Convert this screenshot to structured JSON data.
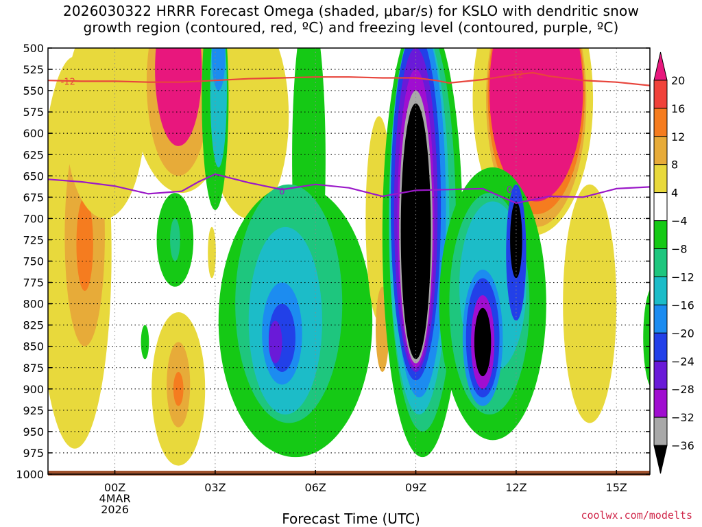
{
  "title": {
    "line1": "2026030322 HRRR Forecast Omega (shaded, μbar/s) for KSLO with dendritic snow",
    "line2": "growth region (contoured, red, ºC) and freezing level (contoured, purple, ºC)"
  },
  "credit": "coolwx.com/modelts",
  "chart_data": {
    "type": "heatmap",
    "xlabel": "Forecast Time (UTC)",
    "x_domain_hours": [
      -2,
      16
    ],
    "x_ticks": [
      {
        "hour": 0,
        "lines": [
          "00Z",
          "4MAR",
          "2026"
        ]
      },
      {
        "hour": 3,
        "lines": [
          "03Z"
        ]
      },
      {
        "hour": 6,
        "lines": [
          "06Z"
        ]
      },
      {
        "hour": 9,
        "lines": [
          "09Z"
        ]
      },
      {
        "hour": 12,
        "lines": [
          "12Z"
        ]
      },
      {
        "hour": 15,
        "lines": [
          "15Z"
        ]
      }
    ],
    "y_scale": "pressure-linear-inverted",
    "ylim": [
      500,
      1000
    ],
    "y_ticks": [
      500,
      525,
      550,
      575,
      600,
      625,
      650,
      675,
      700,
      725,
      750,
      775,
      800,
      825,
      850,
      875,
      900,
      925,
      950,
      975,
      1000
    ],
    "grid": true,
    "colorbar": {
      "labels": [
        "20",
        "16",
        "12",
        "8",
        "4",
        "−4",
        "−8",
        "−12",
        "−16",
        "−20",
        "−24",
        "−28",
        "−32",
        "−36"
      ],
      "bands": [
        {
          "from": 20,
          "to": 24,
          "color": "#e8177d",
          "arrow": true
        },
        {
          "from": 16,
          "to": 20,
          "color": "#f0423a"
        },
        {
          "from": 12,
          "to": 16,
          "color": "#f57c1f"
        },
        {
          "from": 8,
          "to": 12,
          "color": "#e7ab39"
        },
        {
          "from": 4,
          "to": 8,
          "color": "#e8d93c"
        },
        {
          "from": -4,
          "to": 4,
          "color": "#ffffff"
        },
        {
          "from": -8,
          "to": -4,
          "color": "#15c915"
        },
        {
          "from": -12,
          "to": -8,
          "color": "#1ec67e"
        },
        {
          "from": -16,
          "to": -12,
          "color": "#1cbcc8"
        },
        {
          "from": -20,
          "to": -16,
          "color": "#1c8cf0"
        },
        {
          "from": -24,
          "to": -20,
          "color": "#2240e8"
        },
        {
          "from": -28,
          "to": -24,
          "color": "#6a1ad8"
        },
        {
          "from": -32,
          "to": -28,
          "color": "#a00ed0"
        },
        {
          "from": -36,
          "to": -32,
          "color": "#a8a8a8"
        },
        {
          "from": -40,
          "to": -36,
          "color": "#000000",
          "arrow": true
        }
      ]
    },
    "contours": [
      {
        "name": "-12",
        "color": "#e8453c",
        "label_at": [
          {
            "hour": -1.4,
            "p": 539
          },
          {
            "hour": 12.0,
            "p": 531
          }
        ],
        "points": [
          [
            -2,
            538
          ],
          [
            -1,
            539
          ],
          [
            0,
            539
          ],
          [
            1,
            540
          ],
          [
            2,
            540
          ],
          [
            3,
            538
          ],
          [
            4,
            536
          ],
          [
            5,
            535
          ],
          [
            6,
            534
          ],
          [
            7,
            534
          ],
          [
            8,
            535
          ],
          [
            9,
            535
          ],
          [
            9.6,
            538
          ],
          [
            10,
            541
          ],
          [
            11,
            537
          ],
          [
            12,
            531
          ],
          [
            12.5,
            529
          ],
          [
            13,
            533
          ],
          [
            14,
            538
          ],
          [
            15,
            540
          ],
          [
            16,
            544
          ]
        ]
      },
      {
        "name": "0",
        "color": "#9a18c8",
        "label_at": [
          {
            "hour": 5.0,
            "p": 668
          },
          {
            "hour": 11.8,
            "p": 666
          }
        ],
        "points": [
          [
            -2,
            654
          ],
          [
            -1,
            657
          ],
          [
            0,
            662
          ],
          [
            1,
            671
          ],
          [
            2,
            668
          ],
          [
            2.5,
            657
          ],
          [
            3,
            648
          ],
          [
            4,
            658
          ],
          [
            5,
            666
          ],
          [
            6,
            660
          ],
          [
            7,
            664
          ],
          [
            8,
            674
          ],
          [
            9,
            667
          ],
          [
            10,
            666
          ],
          [
            11,
            665
          ],
          [
            12,
            682
          ],
          [
            12.5,
            678
          ],
          [
            13,
            674
          ],
          [
            14,
            675
          ],
          [
            15,
            665
          ],
          [
            16,
            663
          ]
        ]
      }
    ],
    "fields": [
      {
        "hour": -1.2,
        "p": 740,
        "rx": 1.1,
        "ry": 230,
        "value": 5
      },
      {
        "hour": -0.9,
        "p": 720,
        "rx": 0.6,
        "ry": 130,
        "value": 9
      },
      {
        "hour": -0.9,
        "p": 730,
        "rx": 0.25,
        "ry": 55,
        "value": 13
      },
      {
        "hour": -0.3,
        "p": 580,
        "rx": 1.2,
        "ry": 120,
        "value": 5
      },
      {
        "hour": 2.0,
        "p": 520,
        "rx": 1.6,
        "ry": 150,
        "value": 4
      },
      {
        "hour": 1.9,
        "p": 540,
        "rx": 0.95,
        "ry": 110,
        "value": 10
      },
      {
        "hour": 1.9,
        "p": 525,
        "rx": 0.7,
        "ry": 90,
        "value": 21
      },
      {
        "hour": 1.9,
        "p": 900,
        "rx": 0.8,
        "ry": 90,
        "value": 5
      },
      {
        "hour": 1.9,
        "p": 895,
        "rx": 0.35,
        "ry": 50,
        "value": 9
      },
      {
        "hour": 1.9,
        "p": 900,
        "rx": 0.15,
        "ry": 20,
        "value": 13
      },
      {
        "hour": 2.9,
        "p": 740,
        "rx": 0.12,
        "ry": 30,
        "value": 5
      },
      {
        "hour": 4.0,
        "p": 580,
        "rx": 1.2,
        "ry": 120,
        "value": 4
      },
      {
        "hour": 3.0,
        "p": 560,
        "rx": 0.4,
        "ry": 130,
        "value": -6
      },
      {
        "hour": 3.1,
        "p": 550,
        "rx": 0.25,
        "ry": 90,
        "value": -13
      },
      {
        "hour": 3.1,
        "p": 510,
        "rx": 0.2,
        "ry": 40,
        "value": -17
      },
      {
        "hour": 1.8,
        "p": 725,
        "rx": 0.55,
        "ry": 55,
        "value": -6
      },
      {
        "hour": 1.8,
        "p": 725,
        "rx": 0.15,
        "ry": 25,
        "value": -9
      },
      {
        "hour": 0.9,
        "p": 845,
        "rx": 0.12,
        "ry": 20,
        "value": -6
      },
      {
        "hour": 5.8,
        "p": 630,
        "rx": 0.5,
        "ry": 180,
        "value": -5
      },
      {
        "hour": 5.4,
        "p": 820,
        "rx": 2.3,
        "ry": 160,
        "value": -6
      },
      {
        "hour": 5.2,
        "p": 800,
        "rx": 1.6,
        "ry": 140,
        "value": -9
      },
      {
        "hour": 5.1,
        "p": 820,
        "rx": 1.1,
        "ry": 110,
        "value": -13
      },
      {
        "hour": 5.0,
        "p": 835,
        "rx": 0.6,
        "ry": 60,
        "value": -17
      },
      {
        "hour": 5.0,
        "p": 840,
        "rx": 0.4,
        "ry": 40,
        "value": -21
      },
      {
        "hour": 4.8,
        "p": 845,
        "rx": 0.2,
        "ry": 25,
        "value": -25
      },
      {
        "hour": 7.9,
        "p": 700,
        "rx": 0.4,
        "ry": 120,
        "value": 5
      },
      {
        "hour": 8.0,
        "p": 830,
        "rx": 0.2,
        "ry": 50,
        "value": 9
      },
      {
        "hour": 9.2,
        "p": 720,
        "rx": 1.2,
        "ry": 260,
        "value": -6
      },
      {
        "hour": 9.2,
        "p": 710,
        "rx": 1.0,
        "ry": 240,
        "value": -9
      },
      {
        "hour": 9.1,
        "p": 700,
        "rx": 0.9,
        "ry": 230,
        "value": -13
      },
      {
        "hour": 9.1,
        "p": 690,
        "rx": 0.8,
        "ry": 220,
        "value": -17
      },
      {
        "hour": 9.0,
        "p": 685,
        "rx": 0.75,
        "ry": 205,
        "value": -21
      },
      {
        "hour": 9.0,
        "p": 690,
        "rx": 0.65,
        "ry": 190,
        "value": -25
      },
      {
        "hour": 9.0,
        "p": 700,
        "rx": 0.55,
        "ry": 175,
        "value": -29
      },
      {
        "hour": 9.0,
        "p": 710,
        "rx": 0.5,
        "ry": 160,
        "value": -33
      },
      {
        "hour": 9.0,
        "p": 715,
        "rx": 0.45,
        "ry": 150,
        "value": -37
      },
      {
        "hour": 12.5,
        "p": 560,
        "rx": 1.8,
        "ry": 160,
        "value": 5
      },
      {
        "hour": 12.6,
        "p": 560,
        "rx": 1.5,
        "ry": 150,
        "value": 9
      },
      {
        "hour": 12.6,
        "p": 555,
        "rx": 1.45,
        "ry": 140,
        "value": 13
      },
      {
        "hour": 12.6,
        "p": 550,
        "rx": 1.4,
        "ry": 130,
        "value": 21
      },
      {
        "hour": 14.2,
        "p": 800,
        "rx": 0.8,
        "ry": 140,
        "value": 5
      },
      {
        "hour": 11.3,
        "p": 800,
        "rx": 1.6,
        "ry": 160,
        "value": -6
      },
      {
        "hour": 11.2,
        "p": 800,
        "rx": 1.2,
        "ry": 130,
        "value": -9
      },
      {
        "hour": 11.3,
        "p": 780,
        "rx": 1.0,
        "ry": 100,
        "value": -13
      },
      {
        "hour": 11.0,
        "p": 840,
        "rx": 0.6,
        "ry": 80,
        "value": -17
      },
      {
        "hour": 11.0,
        "p": 840,
        "rx": 0.5,
        "ry": 70,
        "value": -21
      },
      {
        "hour": 11.0,
        "p": 845,
        "rx": 0.35,
        "ry": 55,
        "value": -29
      },
      {
        "hour": 11.0,
        "p": 845,
        "rx": 0.25,
        "ry": 40,
        "value": -37
      },
      {
        "hour": 12.0,
        "p": 740,
        "rx": 0.3,
        "ry": 80,
        "value": -21
      },
      {
        "hour": 12.0,
        "p": 725,
        "rx": 0.18,
        "ry": 45,
        "value": -37
      },
      {
        "hour": 16.1,
        "p": 840,
        "rx": 0.3,
        "ry": 60,
        "value": -6
      }
    ]
  }
}
